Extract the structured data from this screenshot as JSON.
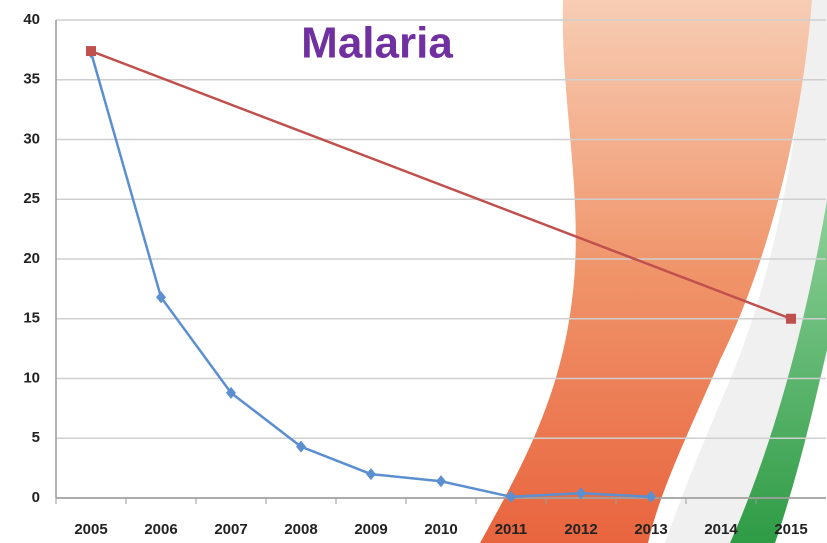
{
  "chart_data": {
    "type": "line",
    "title": "Malaria",
    "xlim": [
      2004.5,
      2015.5
    ],
    "xticks": [
      2005,
      2006,
      2007,
      2008,
      2009,
      2010,
      2011,
      2012,
      2013,
      2014,
      2015
    ],
    "ylim": [
      0,
      40
    ],
    "yticks": [
      0,
      5,
      10,
      15,
      20,
      25,
      30,
      35,
      40
    ],
    "grid": true,
    "series": [
      {
        "color": "#5b8fd0",
        "marker": "diamond",
        "x": [
          2005,
          2006,
          2007,
          2008,
          2009,
          2010,
          2011,
          2012,
          2013
        ],
        "values": [
          37.3,
          16.8,
          8.8,
          4.3,
          2.0,
          1.4,
          0.1,
          0.4,
          0.1
        ]
      },
      {
        "color": "#c0504d",
        "marker": "square",
        "x": [
          2005,
          2015
        ],
        "values": [
          37.4,
          15
        ]
      }
    ]
  }
}
